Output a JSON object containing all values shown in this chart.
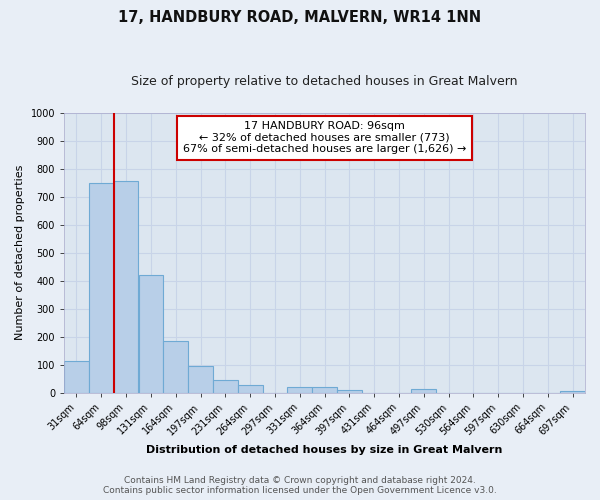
{
  "title": "17, HANDBURY ROAD, MALVERN, WR14 1NN",
  "subtitle": "Size of property relative to detached houses in Great Malvern",
  "xlabel": "Distribution of detached houses by size in Great Malvern",
  "ylabel": "Number of detached properties",
  "bar_labels": [
    "31sqm",
    "64sqm",
    "98sqm",
    "131sqm",
    "164sqm",
    "197sqm",
    "231sqm",
    "264sqm",
    "297sqm",
    "331sqm",
    "364sqm",
    "397sqm",
    "431sqm",
    "464sqm",
    "497sqm",
    "530sqm",
    "564sqm",
    "597sqm",
    "630sqm",
    "664sqm",
    "697sqm"
  ],
  "bar_values": [
    113,
    748,
    758,
    420,
    185,
    97,
    45,
    27,
    0,
    20,
    20,
    11,
    0,
    0,
    13,
    0,
    0,
    0,
    0,
    0,
    7
  ],
  "bar_color": "#b8cfe8",
  "bar_edge_color": "#6faad4",
  "ylim": [
    0,
    1000
  ],
  "yticks": [
    0,
    100,
    200,
    300,
    400,
    500,
    600,
    700,
    800,
    900,
    1000
  ],
  "vline_x": 1.5,
  "property_line_label": "17 HANDBURY ROAD: 96sqm",
  "annotation_line1": "← 32% of detached houses are smaller (773)",
  "annotation_line2": "67% of semi-detached houses are larger (1,626) →",
  "vline_color": "#cc0000",
  "box_edge_color": "#cc0000",
  "footer_line1": "Contains HM Land Registry data © Crown copyright and database right 2024.",
  "footer_line2": "Contains public sector information licensed under the Open Government Licence v3.0.",
  "bg_color": "#e8eef6",
  "plot_bg_color": "#dce6f0",
  "grid_color": "#c8d4e8",
  "title_fontsize": 10.5,
  "subtitle_fontsize": 9,
  "axis_label_fontsize": 8,
  "tick_fontsize": 7,
  "annotation_fontsize": 8,
  "footer_fontsize": 6.5
}
